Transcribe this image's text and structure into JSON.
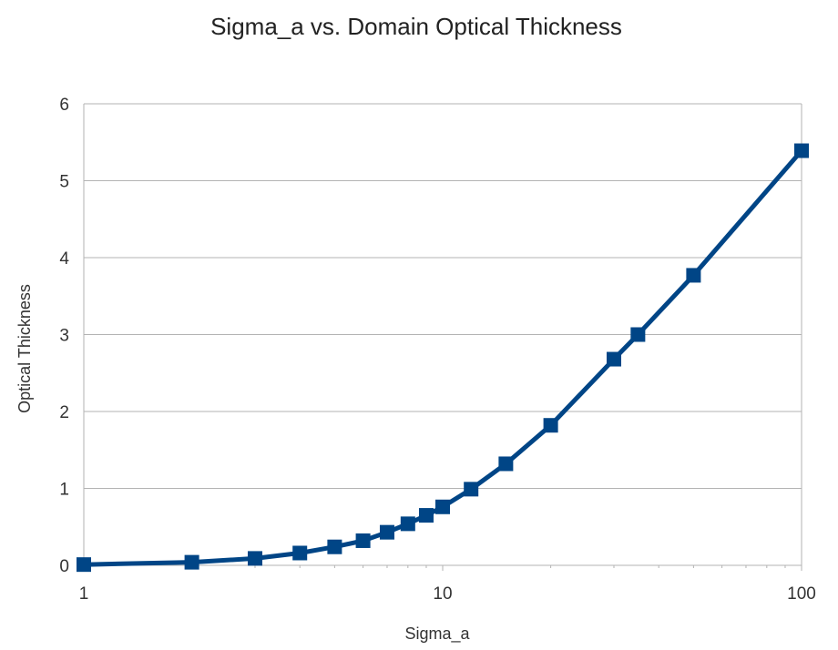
{
  "chart_data": {
    "type": "line",
    "title": "Sigma_a vs. Domain Optical Thickness",
    "xlabel": "Sigma_a",
    "ylabel": "Optical Thickness",
    "xscale": "log",
    "xlim": [
      1,
      100
    ],
    "ylim": [
      0,
      6
    ],
    "xticks": [
      1,
      10,
      100
    ],
    "yticks": [
      0,
      1,
      2,
      3,
      4,
      5,
      6
    ],
    "grid": "horizontal",
    "legend": "none",
    "series": [
      {
        "color": "#004586",
        "marker": "square",
        "x": [
          1,
          2,
          3,
          4,
          5,
          6,
          7,
          8,
          9,
          10,
          12,
          15,
          20,
          30,
          35,
          50,
          100
        ],
        "y": [
          0.01,
          0.04,
          0.09,
          0.16,
          0.24,
          0.32,
          0.43,
          0.54,
          0.65,
          0.76,
          0.99,
          1.32,
          1.82,
          2.68,
          3.0,
          3.77,
          5.39
        ]
      }
    ]
  }
}
